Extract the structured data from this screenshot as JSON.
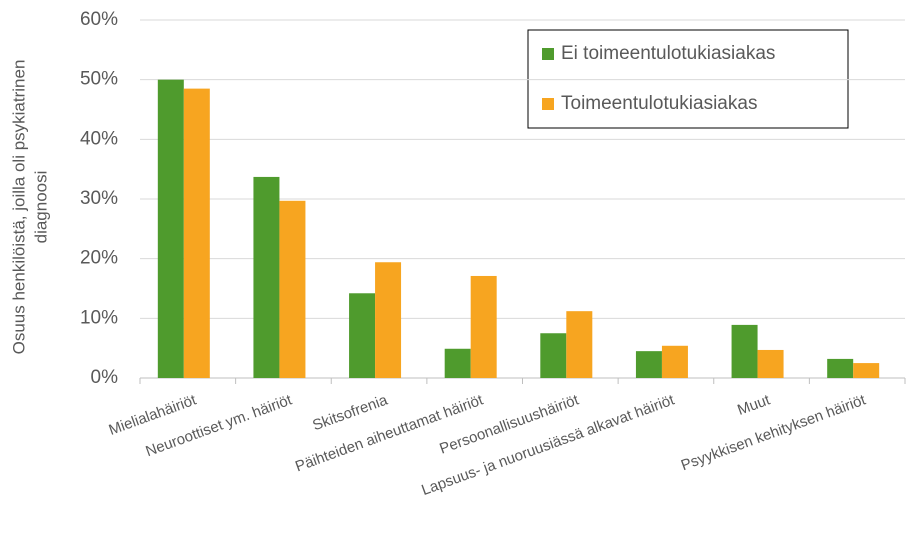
{
  "chart_data": {
    "type": "bar",
    "ylabel": [
      "Osuus henkilöistä, joilla oli psykiatrinen",
      "diagnoosi"
    ],
    "categories": [
      "Mielialahäiriöt",
      "Neuroottiset ym. häiriöt",
      "Skitsofrenia",
      "Päihteiden aiheuttamat häiriöt",
      "Persoonallisuushäiriöt",
      "Lapsuus- ja nuoruusiässä alkavat häiriöt",
      "Muut",
      "Psyykkisen kehityksen häiriöt"
    ],
    "series": [
      {
        "name": "Ei toimeentulotukiasiakas",
        "color": "#4f9b2d",
        "values": [
          50.0,
          33.7,
          14.2,
          4.9,
          7.5,
          4.5,
          8.9,
          3.2
        ]
      },
      {
        "name": "Toimeentulotukiasiakas",
        "color": "#f7a520",
        "values": [
          48.5,
          29.7,
          19.4,
          17.1,
          11.2,
          5.4,
          4.7,
          2.5
        ]
      }
    ],
    "ylim": [
      0,
      60
    ],
    "yticks": [
      {
        "value": 0,
        "label": "0%"
      },
      {
        "value": 10,
        "label": "10%"
      },
      {
        "value": 20,
        "label": "20%"
      },
      {
        "value": 30,
        "label": "30%"
      },
      {
        "value": 40,
        "label": "40%"
      },
      {
        "value": 50,
        "label": "50%"
      },
      {
        "value": 60,
        "label": "60%"
      }
    ],
    "grid": true,
    "legend": "top-right"
  }
}
